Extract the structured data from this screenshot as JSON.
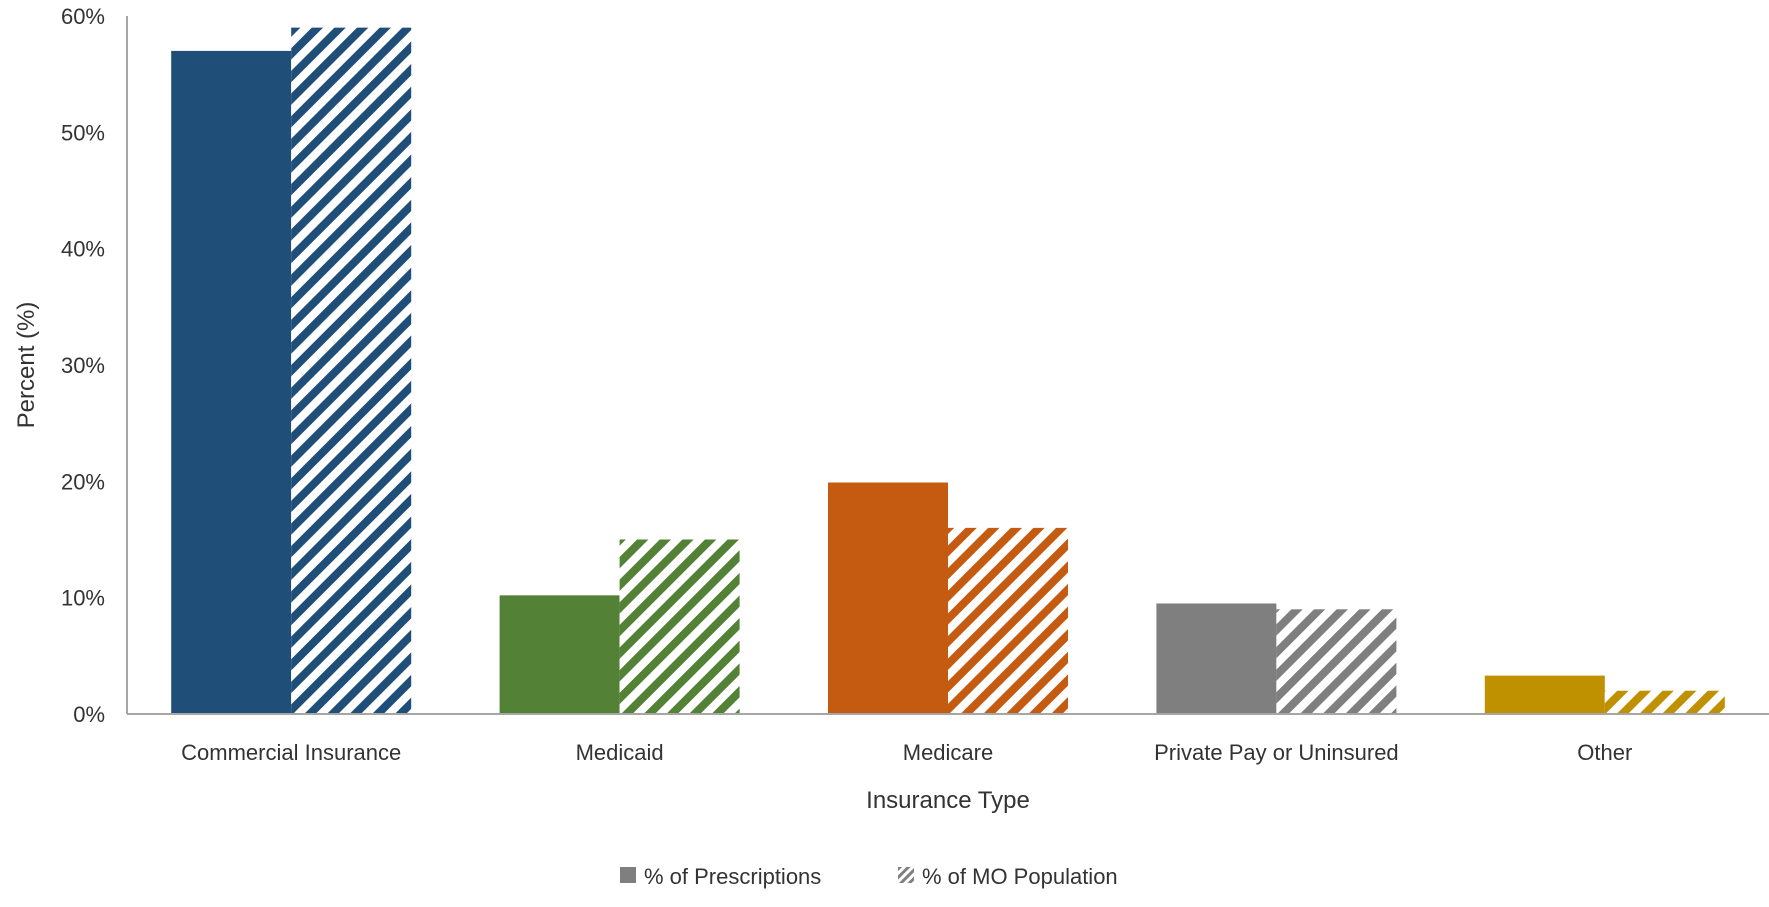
{
  "chart_data": {
    "type": "bar",
    "title": "",
    "xlabel": "Insurance Type",
    "ylabel": "Percent (%)",
    "ylim": [
      0,
      60
    ],
    "yticks": [
      0,
      10,
      20,
      30,
      40,
      50,
      60
    ],
    "ytick_labels": [
      "0%",
      "10%",
      "20%",
      "30%",
      "40%",
      "50%",
      "60%"
    ],
    "grid": false,
    "legend_position": "bottom-center",
    "categories": [
      "Commercial Insurance",
      "Medicaid",
      "Medicare",
      "Private Pay or Uninsured",
      "Other"
    ],
    "category_colors": [
      "#1f4e79",
      "#538135",
      "#c55a11",
      "#7f7f7f",
      "#bf9000"
    ],
    "series": [
      {
        "name": "% of Prescriptions",
        "style": "solid",
        "values": [
          57,
          10.2,
          19.9,
          9.5,
          3.3
        ]
      },
      {
        "name": "% of MO Population",
        "style": "hatched",
        "values": [
          59,
          15,
          16,
          9,
          2
        ]
      }
    ]
  }
}
